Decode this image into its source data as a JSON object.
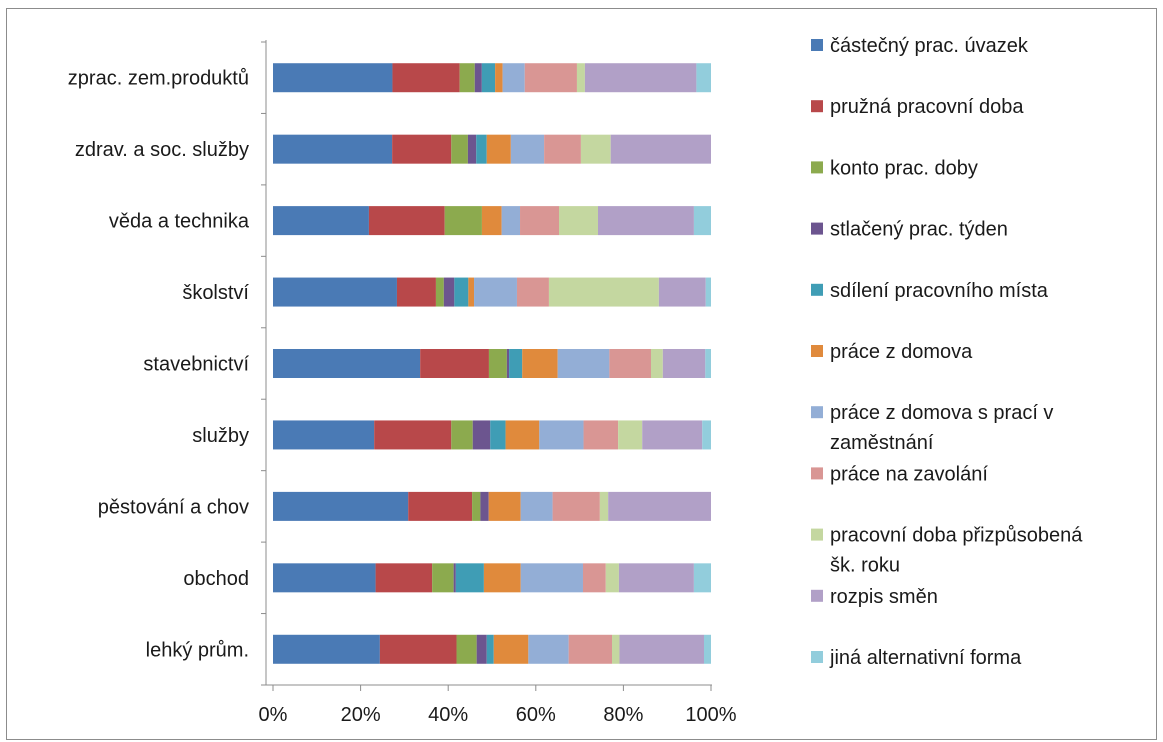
{
  "chart_data": {
    "type": "bar",
    "orientation": "horizontal",
    "stacking": "percent",
    "title": "",
    "xlabel": "",
    "ylabel": "",
    "xlim": [
      0,
      100
    ],
    "x_ticks": [
      "0%",
      "20%",
      "40%",
      "60%",
      "80%",
      "100%"
    ],
    "grid": false,
    "legend_position": "right",
    "categories": [
      "zprac. zem.produktů",
      "zdrav. a soc. služby",
      "věda a technika",
      "školství",
      "stavebnictví",
      "služby",
      "pěstování a chov",
      "obchod",
      "lehký prům."
    ],
    "series": [
      {
        "name": "částečný prac. úvazek",
        "color": "#4a7ab5",
        "values": [
          27.0,
          27.2,
          21.9,
          28.3,
          33.6,
          23.1,
          30.9,
          23.4,
          24.4
        ]
      },
      {
        "name": "pružná pracovní doba",
        "color": "#b8484a",
        "values": [
          15.2,
          13.5,
          17.3,
          8.9,
          15.7,
          17.6,
          14.6,
          12.9,
          17.5
        ]
      },
      {
        "name": "konto prac. doby",
        "color": "#8caa4e",
        "values": [
          3.4,
          3.8,
          8.5,
          1.8,
          4.1,
          4.9,
          1.9,
          4.9,
          4.6
        ]
      },
      {
        "name": "stlačený prac. týden",
        "color": "#6c558f",
        "values": [
          1.6,
          1.9,
          0.0,
          2.4,
          0.5,
          4.0,
          1.9,
          0.5,
          2.3
        ]
      },
      {
        "name": "sdílení pracovního místa",
        "color": "#3f9db5",
        "values": [
          3.0,
          2.4,
          0.0,
          3.2,
          3.0,
          3.5,
          0.0,
          6.4,
          1.6
        ]
      },
      {
        "name": "práce z domova",
        "color": "#e08a3c",
        "values": [
          1.7,
          5.5,
          4.5,
          1.3,
          8.1,
          7.7,
          7.3,
          8.4,
          7.9
        ]
      },
      {
        "name": "práce z domova s prací v zaměstnání",
        "color": "#93aed6",
        "values": [
          5.0,
          7.6,
          4.2,
          9.8,
          11.8,
          10.1,
          7.3,
          14.2,
          9.2
        ]
      },
      {
        "name": "práce na zavolání",
        "color": "#d99694",
        "values": [
          11.8,
          8.4,
          8.9,
          7.3,
          9.5,
          7.9,
          10.8,
          5.2,
          9.9
        ]
      },
      {
        "name": "pracovní doba přizpůsobená šk. roku",
        "color": "#c4d7a0",
        "values": [
          1.8,
          6.8,
          8.9,
          25.1,
          2.7,
          5.5,
          1.9,
          3.0,
          1.7
        ]
      },
      {
        "name": "rozpis směn",
        "color": "#b1a0c7",
        "values": [
          25.2,
          22.9,
          21.9,
          10.7,
          9.7,
          13.7,
          23.5,
          17.1,
          19.3
        ]
      },
      {
        "name": "jiná alternativní forma",
        "color": "#92cddc",
        "values": [
          3.3,
          0.0,
          3.9,
          1.2,
          1.3,
          2.0,
          0.0,
          3.9,
          1.6
        ]
      }
    ]
  }
}
